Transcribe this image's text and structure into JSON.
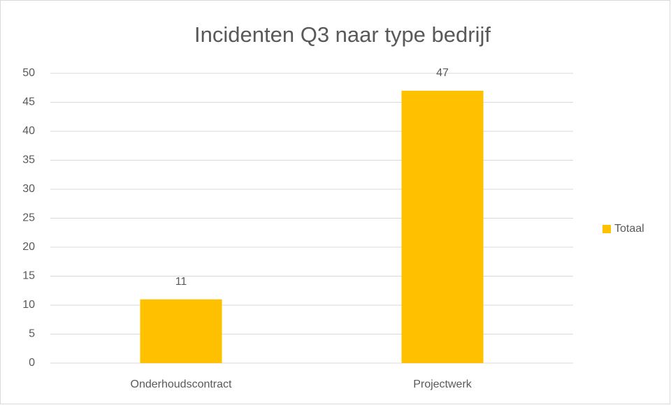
{
  "chart_data": {
    "type": "bar",
    "title": "Incidenten Q3 naar type bedrijf",
    "categories": [
      "Onderhoudscontract",
      "Projectwerk"
    ],
    "series": [
      {
        "name": "Totaal",
        "color": "#ffc000",
        "values": [
          11,
          47
        ]
      }
    ],
    "ylim": [
      0,
      50
    ],
    "yticks": [
      0,
      5,
      10,
      15,
      20,
      25,
      30,
      35,
      40,
      45,
      50
    ],
    "grid": true,
    "legend": "right"
  }
}
